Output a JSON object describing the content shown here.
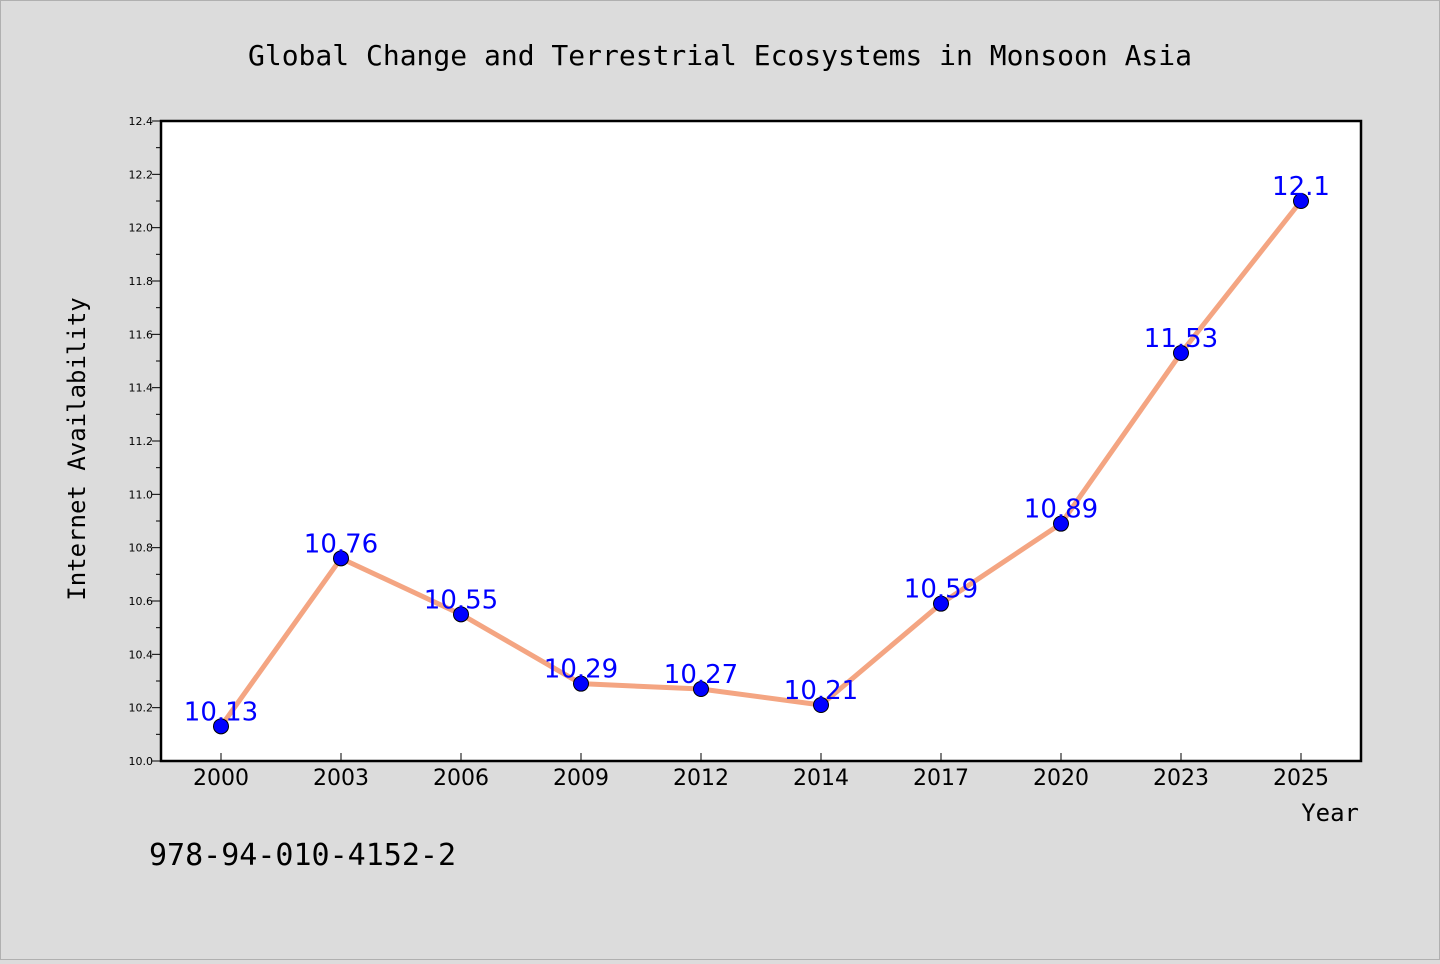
{
  "chart_data": {
    "type": "line",
    "title": "Global Change and Terrestrial Ecosystems in Monsoon Asia",
    "xlabel": "Year",
    "ylabel": "Internet Availability",
    "categories": [
      "2000",
      "2003",
      "2006",
      "2009",
      "2012",
      "2014",
      "2017",
      "2020",
      "2023",
      "2025"
    ],
    "series": [
      {
        "values": [
          10.13,
          10.76,
          10.55,
          10.29,
          10.27,
          10.21,
          10.59,
          10.89,
          11.53,
          12.1
        ],
        "labels": [
          "10.13",
          "10.76",
          "10.55",
          "10.29",
          "10.27",
          "10.21",
          "10.59",
          "10.89",
          "11.53",
          "12.1"
        ]
      }
    ],
    "ylim": [
      10.0,
      12.4
    ],
    "yticks": [
      "10.0",
      "10.2",
      "10.4",
      "10.6",
      "10.8",
      "11.0",
      "11.2",
      "11.4",
      "11.6",
      "11.8",
      "12.0",
      "12.2",
      "12.4"
    ],
    "grid": false,
    "legend": "none",
    "colors": {
      "line": "#f4a582",
      "marker": "#0000ff",
      "data_label": "#0000ff"
    }
  },
  "footer": {
    "isbn": "978-94-010-4152-2"
  }
}
